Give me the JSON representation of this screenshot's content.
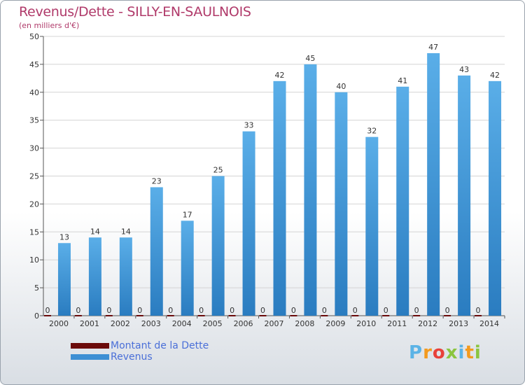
{
  "chart_data": {
    "type": "bar",
    "title": "Revenus/Dette - SILLY-EN-SAULNOIS",
    "subtitle": "(en milliers d'€)",
    "categories": [
      "2000",
      "2001",
      "2002",
      "2003",
      "2004",
      "2005",
      "2006",
      "2007",
      "2008",
      "2009",
      "2010",
      "2011",
      "2012",
      "2013",
      "2014"
    ],
    "series": [
      {
        "name": "Montant de la Dette",
        "color": "#6b0a0a",
        "values": [
          0,
          0,
          0,
          0,
          0,
          0,
          0,
          0,
          0,
          0,
          0,
          0,
          0,
          0,
          0
        ]
      },
      {
        "name": "Revenus",
        "color": "#3d8fd4",
        "values": [
          13,
          14,
          14,
          23,
          17,
          25,
          33,
          42,
          45,
          40,
          32,
          41,
          47,
          43,
          42
        ]
      }
    ],
    "ylim": [
      0,
      50
    ],
    "yticks": [
      0,
      5,
      10,
      15,
      20,
      25,
      30,
      35,
      40,
      45,
      50
    ],
    "grid": true,
    "legend": "bottom-left"
  },
  "logo": {
    "text": "Proxiti",
    "colors": [
      "#5bb3e6",
      "#f39a1e",
      "#e8413a",
      "#8bc53f",
      "#5bb3e6",
      "#f39a1e",
      "#8bc53f"
    ]
  }
}
